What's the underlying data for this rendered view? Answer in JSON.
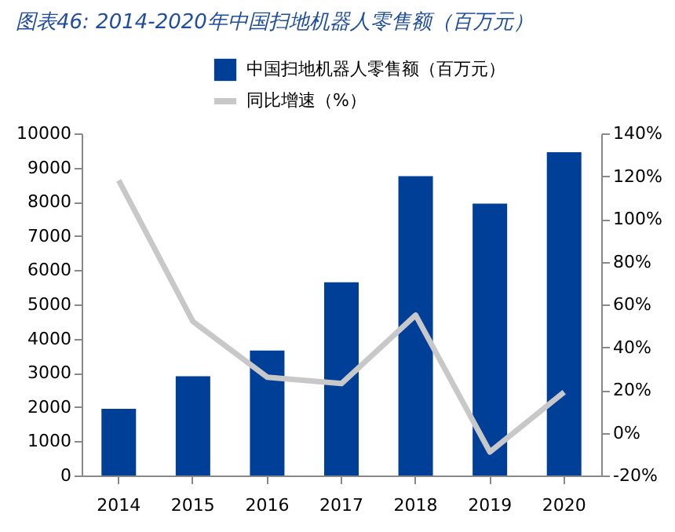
{
  "chart_data": {
    "type": "bar",
    "title": "图表46:  2014-2020年中国扫地机器人零售额（百万元）",
    "categories": [
      "2014",
      "2015",
      "2016",
      "2017",
      "2018",
      "2019",
      "2020"
    ],
    "series": [
      {
        "name": "中国扫地机器人零售额（百万元）",
        "color": "#003f98",
        "values": [
          1950,
          2900,
          3650,
          5650,
          8750,
          7950,
          9450
        ]
      },
      {
        "name": "同比增速（%）",
        "type": "line",
        "axis": "y2",
        "color": "#c8c8c8",
        "values": [
          118,
          52,
          26,
          23,
          55,
          -9,
          19
        ]
      }
    ],
    "ylim": [
      0,
      10000
    ],
    "yticks": [
      0,
      1000,
      2000,
      3000,
      4000,
      5000,
      6000,
      7000,
      8000,
      9000,
      10000
    ],
    "y2lim": [
      -20,
      140
    ],
    "y2ticks": [
      {
        "value": -20,
        "label": "-20%"
      },
      {
        "value": 0,
        "label": "0%"
      },
      {
        "value": 20,
        "label": "20%"
      },
      {
        "value": 40,
        "label": "40%"
      },
      {
        "value": 60,
        "label": "60%"
      },
      {
        "value": 80,
        "label": "80%"
      },
      {
        "value": 100,
        "label": "100%"
      },
      {
        "value": 120,
        "label": "120%"
      },
      {
        "value": 140,
        "label": "140%"
      }
    ],
    "legend": "top",
    "grid": false
  }
}
